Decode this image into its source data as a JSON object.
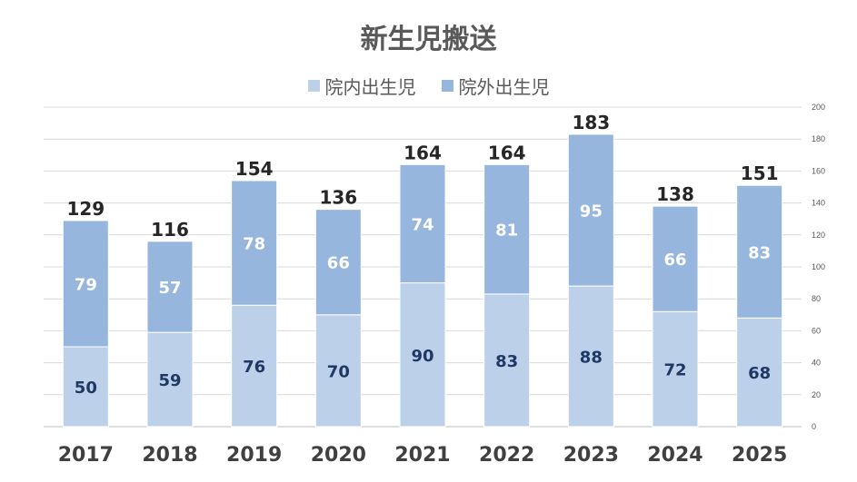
{
  "chart_data": {
    "type": "bar",
    "stacked": true,
    "title": "新生児搬送",
    "categories": [
      "2017",
      "2018",
      "2019",
      "2020",
      "2021",
      "2022",
      "2023",
      "2024",
      "2025"
    ],
    "series": [
      {
        "name": "院内出生児",
        "color": "#bdd0ea",
        "values": [
          50,
          59,
          76,
          70,
          90,
          83,
          88,
          72,
          68
        ]
      },
      {
        "name": "院外出生児",
        "color": "#96b6de",
        "values": [
          79,
          57,
          78,
          66,
          74,
          81,
          95,
          66,
          83
        ]
      }
    ],
    "totals": [
      129,
      116,
      154,
      136,
      164,
      164,
      183,
      138,
      151
    ],
    "ylim": [
      0,
      200
    ],
    "yticks": [
      0,
      20,
      40,
      60,
      80,
      100,
      120,
      140,
      160,
      180,
      200
    ],
    "y_axis_position": "right",
    "grid": true,
    "legend_position": "top"
  }
}
